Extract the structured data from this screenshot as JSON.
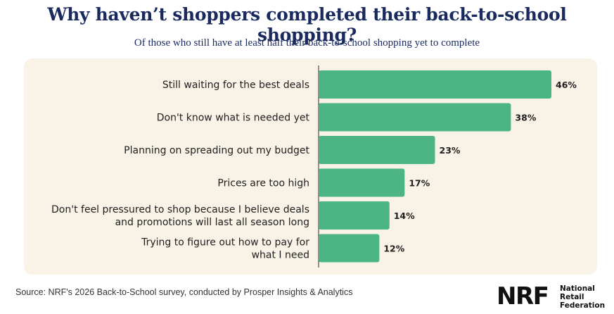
{
  "title": "Why haven’t shoppers completed their back-to-school shopping?",
  "subtitle": "Of those who still have at least half their back-to-school shopping yet to complete",
  "source": "Source: NRF's 2026 Back-to-School survey, conducted by Prosper Insights & Analytics",
  "logo": {
    "mark": "NRF",
    "line1": "National",
    "line2": "Retail",
    "line3": "Federation"
  },
  "colors": {
    "bar": "#4db584",
    "panel": "#f8f2e7",
    "title": "#1a2a5e"
  },
  "chart_data": {
    "type": "bar",
    "orientation": "horizontal",
    "title": "Why haven’t shoppers completed their back-to-school shopping?",
    "subtitle": "Of those who still have at least half their back-to-school shopping yet to complete",
    "categories": [
      [
        "Still waiting for the best deals"
      ],
      [
        "Don't know what is needed yet"
      ],
      [
        "Planning on spreading out my budget"
      ],
      [
        "Prices are too high"
      ],
      [
        "Don't feel pressured to shop because I believe deals",
        "and promotions will last all season long"
      ],
      [
        "Trying to figure out how to pay for",
        "what I need"
      ]
    ],
    "values": [
      46,
      38,
      23,
      17,
      14,
      12
    ],
    "data_labels": [
      "46%",
      "38%",
      "23%",
      "17%",
      "14%",
      "12%"
    ],
    "unit": "%",
    "xlim": [
      0,
      46
    ],
    "grid": false,
    "legend": "none"
  }
}
